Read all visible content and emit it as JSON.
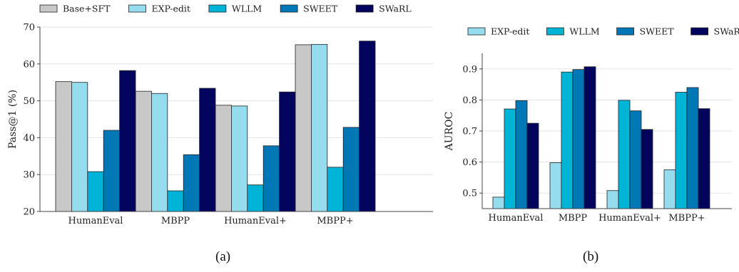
{
  "captions": {
    "a": "(a)",
    "b": "(b)"
  },
  "colors": {
    "Base+SFT": "#c8c8c8",
    "EXP-edit": "#95dcee",
    "WLLM": "#00b4d8",
    "SWEET": "#0077b6",
    "SWaRL": "#03045e"
  },
  "chart_data": [
    {
      "type": "bar",
      "title": "",
      "xlabel": "",
      "ylabel": "Pass@1 (%)",
      "ylim": [
        20,
        70
      ],
      "yticks": [
        20,
        30,
        40,
        50,
        60,
        70
      ],
      "grid": true,
      "legend_position": "top",
      "categories": [
        "HumanEval",
        "MBPP",
        "HumanEval+",
        "MBPP+"
      ],
      "series": [
        {
          "name": "Base+SFT",
          "values": [
            55.2,
            52.6,
            48.8,
            65.2
          ]
        },
        {
          "name": "EXP-edit",
          "values": [
            55.0,
            52.0,
            48.6,
            65.3
          ]
        },
        {
          "name": "WLLM",
          "values": [
            30.8,
            25.6,
            27.2,
            32.0
          ]
        },
        {
          "name": "SWEET",
          "values": [
            42.0,
            35.4,
            37.8,
            42.8
          ]
        },
        {
          "name": "SWaRL",
          "values": [
            58.2,
            53.4,
            52.4,
            66.2
          ]
        }
      ]
    },
    {
      "type": "bar",
      "title": "",
      "xlabel": "",
      "ylabel": "AUROC",
      "ylim": [
        0.45,
        0.95
      ],
      "yticks": [
        0.5,
        0.6,
        0.7,
        0.8,
        0.9
      ],
      "grid": true,
      "legend_position": "top",
      "categories": [
        "HumanEval",
        "MBPP",
        "HumanEval+",
        "MBPP+"
      ],
      "series": [
        {
          "name": "EXP-edit",
          "values": [
            0.487,
            0.598,
            0.508,
            0.575
          ]
        },
        {
          "name": "WLLM",
          "values": [
            0.771,
            0.89,
            0.799,
            0.825
          ]
        },
        {
          "name": "SWEET",
          "values": [
            0.798,
            0.898,
            0.765,
            0.84
          ]
        },
        {
          "name": "SWaRL",
          "values": [
            0.725,
            0.907,
            0.705,
            0.772
          ]
        }
      ]
    }
  ]
}
